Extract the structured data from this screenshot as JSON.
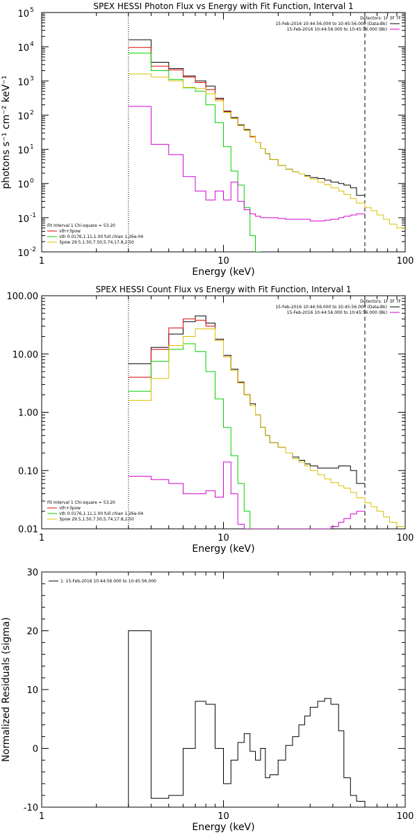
{
  "chart_data": [
    {
      "type": "line",
      "title": "SPEX HESSI Photon Flux vs Energy with Fit Function, Interval 1",
      "xlabel": "Energy (keV)",
      "ylabel": "photons s⁻¹ cm⁻² keV⁻¹",
      "xscale": "log",
      "yscale": "log",
      "xlim": [
        1,
        100
      ],
      "ylim": [
        0.01,
        100000
      ],
      "xticks": [
        {
          "v": 1,
          "label": "1"
        },
        {
          "v": 10,
          "label": "10"
        },
        {
          "v": 100,
          "label": "100"
        }
      ],
      "yticks": [
        {
          "v": 0.01,
          "base": "10",
          "exp": "-2"
        },
        {
          "v": 0.1,
          "base": "10",
          "exp": "-1"
        },
        {
          "v": 1,
          "base": "10",
          "exp": "0"
        },
        {
          "v": 10,
          "base": "10",
          "exp": "1"
        },
        {
          "v": 100,
          "base": "10",
          "exp": "2"
        },
        {
          "v": 1000,
          "base": "10",
          "exp": "3"
        },
        {
          "v": 10000,
          "base": "10",
          "exp": "4"
        },
        {
          "v": 100000,
          "base": "10",
          "exp": "5"
        }
      ],
      "vlines": [
        {
          "x": 3,
          "style": "dotted"
        },
        {
          "x": 60,
          "style": "dashed"
        }
      ],
      "legend_topright": {
        "header": "Detectors: 1F 3F 7F",
        "entries": [
          {
            "text": "15-Feb-2016 10:44:56.000 to 10:45:56.000 (Data-Bk)",
            "color": "#000000"
          },
          {
            "text": "15-Feb-2016 10:44:56.000 to 10:45:56.000 (Bk)",
            "color": "#d400d4"
          }
        ]
      },
      "legend_bottomleft": {
        "header": "Fit Interval 1    Chi-square = 53.20",
        "entries": [
          {
            "text": "vth+3pow",
            "color": "#e00000"
          },
          {
            "text": "vth 0.0176,1.11,1.00  full chian 1.26e-04",
            "color": "#00d000"
          },
          {
            "text": "3pow 29.5,1.50,7.50,5.74,17.8,2.50",
            "color": "#d8c000"
          }
        ]
      },
      "edges": [
        3,
        4,
        5,
        6,
        7,
        8,
        9,
        10,
        11,
        12,
        13,
        14,
        15,
        16,
        17,
        18,
        20,
        22,
        24,
        26,
        28,
        30,
        33,
        36,
        39,
        43,
        46,
        50,
        54,
        60,
        65,
        70,
        76,
        82,
        90,
        100
      ],
      "series": [
        {
          "color": "#000000",
          "values": [
            16000,
            3500,
            2300,
            1400,
            1000,
            700,
            310,
            130,
            85,
            52,
            38,
            24,
            16,
            10.5,
            7.5,
            5,
            3.4,
            2.6,
            2.2,
            1.9,
            1.7,
            1.5,
            1.4,
            1.25,
            1.1,
            1,
            0.9,
            0.75,
            0.45,
            null,
            null,
            null,
            null,
            null,
            null
          ]
        },
        {
          "color": "#e00000",
          "values": [
            9500,
            2700,
            2100,
            1300,
            900,
            560,
            290,
            125,
            80,
            50,
            36,
            23
          ]
        },
        {
          "color": "#00d000",
          "values": [
            6500,
            2000,
            1100,
            630,
            500,
            200,
            60,
            12,
            2.3,
            0.9,
            0.2,
            0.03,
            0.01
          ]
        },
        {
          "color": "#d8c000",
          "values": [
            1600,
            1300,
            1000,
            650,
            600,
            420,
            260,
            120,
            80,
            50,
            36,
            24,
            16,
            10.5,
            7.5,
            5,
            3.4,
            2.6,
            2.2,
            1.9,
            1.6,
            1.35,
            1.1,
            0.92,
            0.75,
            0.6,
            0.48,
            0.36,
            0.27,
            0.2,
            0.16,
            0.12,
            0.09,
            0.065,
            0.05
          ]
        },
        {
          "color": "#d400d4",
          "values": [
            180,
            14,
            7,
            1.6,
            0.6,
            0.33,
            0.6,
            0.33,
            1.1,
            0.3,
            0.17,
            0.13,
            0.11,
            0.1,
            0.1,
            0.1,
            0.095,
            0.09,
            0.09,
            0.09,
            0.09,
            0.08,
            0.08,
            0.085,
            0.09,
            0.1,
            0.11,
            0.12,
            0.13,
            null,
            null,
            null,
            null,
            null,
            null
          ]
        }
      ]
    },
    {
      "type": "line",
      "title": "SPEX HESSI Count Flux vs Energy with Fit Function, Interval 1",
      "xlabel": "Energy (keV)",
      "ylabel": "",
      "xscale": "log",
      "yscale": "log",
      "xlim": [
        1,
        100
      ],
      "ylim": [
        0.01,
        100
      ],
      "xticks": [
        {
          "v": 1,
          "label": "1"
        },
        {
          "v": 10,
          "label": "10"
        },
        {
          "v": 100,
          "label": "100"
        }
      ],
      "yticks": [
        {
          "v": 0.01,
          "label": "0.01"
        },
        {
          "v": 0.1,
          "label": "0.10"
        },
        {
          "v": 1,
          "label": "1.00"
        },
        {
          "v": 10,
          "label": "10.00"
        },
        {
          "v": 100,
          "label": "100.00"
        }
      ],
      "vlines": [
        {
          "x": 3,
          "style": "dotted"
        },
        {
          "x": 60,
          "style": "dashed"
        }
      ],
      "legend_topright": {
        "header": "Detectors: 1F 3F 7F",
        "entries": [
          {
            "text": "15-Feb-2016 10:44:56.000 to 10:45:56.000 (Data-Bk)",
            "color": "#000000"
          },
          {
            "text": "15-Feb-2016 10:44:56.000 to 10:45:56.000 (Bk)",
            "color": "#d400d4"
          }
        ]
      },
      "legend_bottomleft": {
        "header": "Fit Interval 1    Chi-square = 53.20",
        "entries": [
          {
            "text": "vth+3pow",
            "color": "#e00000"
          },
          {
            "text": "vth 0.0176,1.11,1.00  full chian 1.26e-04",
            "color": "#00d000"
          },
          {
            "text": "3pow 29.5,1.50,7.50,5.74,17.8,2.50",
            "color": "#d8c000"
          }
        ]
      },
      "edges": [
        3,
        4,
        5,
        6,
        7,
        8,
        9,
        10,
        11,
        12,
        13,
        14,
        15,
        16,
        17,
        18,
        20,
        22,
        24,
        26,
        28,
        30,
        33,
        36,
        39,
        43,
        46,
        50,
        54,
        60,
        65,
        70,
        76,
        82,
        90,
        100
      ],
      "series": [
        {
          "color": "#000000",
          "values": [
            6.8,
            13,
            22,
            36,
            45,
            34,
            18,
            9.5,
            5.5,
            3.3,
            2,
            1.4,
            0.9,
            0.55,
            0.4,
            0.3,
            0.25,
            0.2,
            0.17,
            0.15,
            0.13,
            0.12,
            0.11,
            0.11,
            0.11,
            0.12,
            0.12,
            0.1,
            0.06,
            null,
            null,
            null,
            null,
            null,
            null
          ]
        },
        {
          "color": "#e00000",
          "values": [
            4,
            12,
            28,
            40,
            38,
            30,
            17,
            9,
            5.2,
            3.2,
            2,
            1.3
          ]
        },
        {
          "color": "#00d000",
          "values": [
            2.3,
            7.5,
            12,
            15,
            11,
            5,
            1.7,
            0.55,
            0.18,
            0.06,
            0.02,
            0.008
          ]
        },
        {
          "color": "#d8c000",
          "values": [
            1.6,
            3.8,
            14,
            20,
            27,
            27,
            17,
            9,
            5.2,
            3.2,
            2,
            1.3,
            0.9,
            0.55,
            0.4,
            0.3,
            0.25,
            0.2,
            0.16,
            0.14,
            0.12,
            0.1,
            0.085,
            0.072,
            0.062,
            0.055,
            0.05,
            0.042,
            0.034,
            0.028,
            0.024,
            0.02,
            0.016,
            0.013,
            0.011
          ]
        },
        {
          "color": "#d400d4",
          "values": [
            0.08,
            0.07,
            0.06,
            0.04,
            0.04,
            0.045,
            0.035,
            0.14,
            0.04,
            0.012,
            0.01,
            0.009,
            0.008,
            0.008,
            0.008,
            0.008,
            0.008,
            0.008,
            0.008,
            0.008,
            0.008,
            0.008,
            0.009,
            0.01,
            0.011,
            0.013,
            0.015,
            0.018,
            0.02,
            null,
            null,
            null,
            null,
            null,
            null
          ]
        }
      ]
    },
    {
      "type": "line",
      "title": "",
      "xlabel": "Energy (keV)",
      "ylabel": "Normalized Residuals (sigma)",
      "xscale": "log",
      "yscale": "linear",
      "xlim": [
        1,
        100
      ],
      "ylim": [
        -10,
        30
      ],
      "xticks": [
        {
          "v": 1,
          "label": "1"
        },
        {
          "v": 10,
          "label": "10"
        },
        {
          "v": 100,
          "label": "100"
        }
      ],
      "yticks": [
        {
          "v": -10,
          "label": "-10"
        },
        {
          "v": 0,
          "label": "0"
        },
        {
          "v": 10,
          "label": "10"
        },
        {
          "v": 20,
          "label": "20"
        },
        {
          "v": 30,
          "label": "30"
        }
      ],
      "vlines": [],
      "legend_topleft": {
        "entries": [
          {
            "text": "1. 15-Feb-2016 10:44:56.000 to 10:45:56.000",
            "color": "#000000"
          }
        ]
      },
      "edges": [
        3,
        4,
        5,
        6,
        7,
        8,
        9,
        10,
        11,
        12,
        13,
        14,
        15,
        16,
        17,
        18,
        20,
        22,
        24,
        26,
        28,
        30,
        33,
        36,
        39,
        43,
        46,
        50,
        54,
        60
      ],
      "series": [
        {
          "color": "#000000",
          "values": [
            20,
            -8.5,
            -8,
            0,
            8,
            7.5,
            0,
            -6,
            -2,
            1,
            2.5,
            -0.5,
            -2,
            0,
            -5,
            -4.5,
            -2,
            0.5,
            2,
            4,
            5.5,
            7,
            8,
            8.5,
            7.5,
            3,
            -5,
            -8,
            -9
          ]
        }
      ]
    }
  ]
}
